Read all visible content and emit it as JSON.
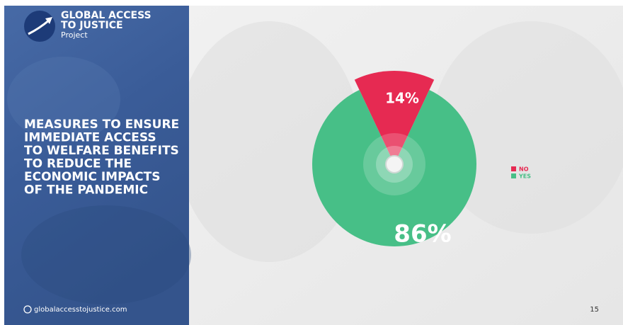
{
  "slide": {
    "logo": [
      "GLOBAL ACCESS",
      "TO JUSTICE",
      "Project"
    ],
    "heading": [
      "MEASURES TO ENSURE",
      "IMMEDIATE ACCESS",
      "TO WELFARE BENEFITS",
      "TO REDUCE THE",
      "ECONOMIC IMPACTS",
      "OF THE PANDEMIC"
    ],
    "url": "globalaccesstojustice.com",
    "page": "15"
  },
  "chart_data": {
    "type": "pie",
    "categories": [
      "NO",
      "YES"
    ],
    "values": [
      14,
      86
    ],
    "value_labels": [
      "14%",
      "86%"
    ],
    "colors": [
      "#e62a52",
      "#47bf87"
    ],
    "legend": "right"
  }
}
